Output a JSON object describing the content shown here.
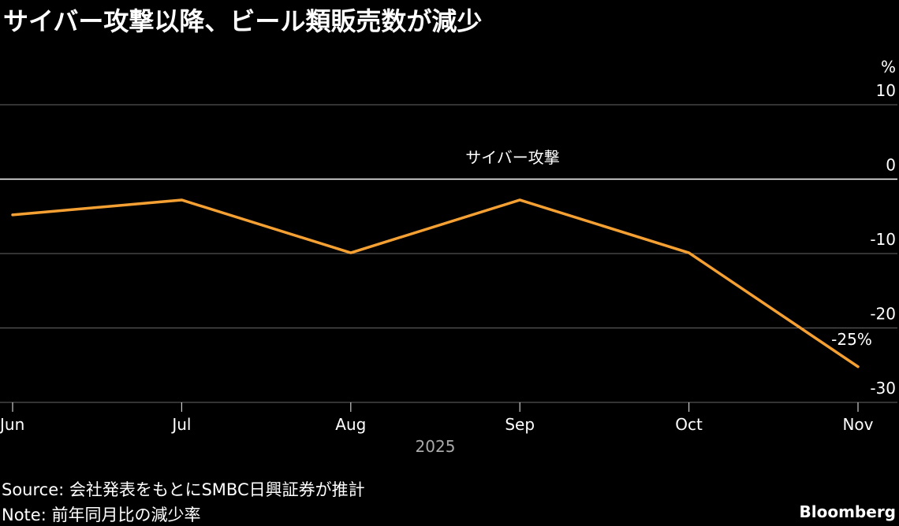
{
  "title": "サイバー攻撃以降、ビール類販売数が減少",
  "chart_data": {
    "type": "line",
    "title": "サイバー攻撃以降、ビール類販売数が減少",
    "categories": [
      "Jun",
      "Jul",
      "Aug",
      "Sep",
      "Oct",
      "Nov"
    ],
    "xlabel": "2025",
    "ylabel": "%",
    "ylim": [
      -30,
      10
    ],
    "yticks": [
      10,
      0,
      -10,
      -20,
      -30
    ],
    "ytick_labels": [
      "10",
      "0",
      "-10",
      "-20",
      "-30"
    ],
    "series": [
      {
        "values": [
          -4.8,
          -2.8,
          -9.9,
          -2.8,
          -9.9,
          -25.2
        ],
        "color": "#F5A033"
      }
    ],
    "annotations": {
      "zero_line_label": "サイバー攻撃",
      "last_value_label": "-25%"
    },
    "grid": true,
    "y_axis_position": "right"
  },
  "footer": {
    "source": "Source: 会社発表をもとにSMBC日興証券が推計",
    "note": "Note: 前年同月比の減少率",
    "brand": "Bloomberg"
  }
}
